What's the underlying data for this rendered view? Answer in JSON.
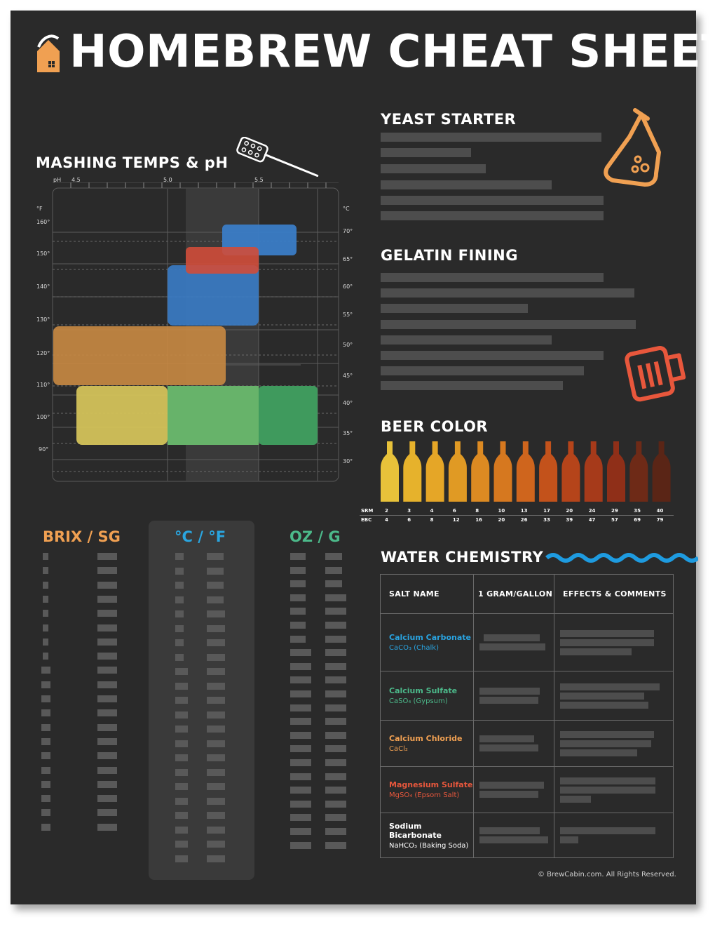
{
  "header": {
    "title": "HOMEBREW CHEAT SHEET",
    "logo_icon": "house-icon"
  },
  "mashing": {
    "title": "MASHING TEMPS & pH",
    "ph_label": "pH",
    "ph_ticks": [
      "4.5",
      "5.0",
      "5.5"
    ],
    "f_label": "°F",
    "c_label": "°C",
    "f_ticks": [
      "160°",
      "150°",
      "140°",
      "130°",
      "120°",
      "110°",
      "100°",
      "90°"
    ],
    "c_ticks": [
      "70°",
      "65°",
      "60°",
      "55°",
      "50°",
      "45°",
      "40°",
      "35°",
      "30°"
    ],
    "colors": {
      "blue": "#3a7cc6",
      "red": "#d04c3a",
      "orange": "#c98a43",
      "yellow": "#d3c25a",
      "green": "#67b36a",
      "darkgreen": "#3f9a5d"
    }
  },
  "yeast_starter": {
    "title": "YEAST STARTER"
  },
  "gelatin_fining": {
    "title": "GELATIN FINING"
  },
  "beer_color": {
    "title": "BEER COLOR",
    "srm_label": "SRM",
    "ebc_label": "EBC",
    "srm": [
      "2",
      "3",
      "4",
      "6",
      "8",
      "10",
      "13",
      "17",
      "20",
      "24",
      "29",
      "35",
      "40"
    ],
    "ebc": [
      "4",
      "6",
      "8",
      "12",
      "16",
      "20",
      "26",
      "33",
      "39",
      "47",
      "57",
      "69",
      "79"
    ],
    "bottle_colors": [
      "#e8c23a",
      "#e6b22c",
      "#e5a627",
      "#e09a24",
      "#dc8a22",
      "#d6781f",
      "#cf651d",
      "#c3521b",
      "#b5441a",
      "#a63a1a",
      "#8f2f18",
      "#6e2a17",
      "#5a2516"
    ]
  },
  "conversions": {
    "brix_sg": "BRIX / SG",
    "c_f": "°C / °F",
    "oz_g": "OZ / G",
    "colors": {
      "brix": "#f0a052",
      "cf": "#2aa5df",
      "ozg": "#4cb98a"
    }
  },
  "water": {
    "title": "WATER CHEMISTRY",
    "headers": [
      "SALT NAME",
      "1 GRAM/GALLON",
      "EFFECTS & COMMENTS"
    ],
    "salts": [
      {
        "name": "Calcium Carbonate",
        "formula": "CaCO₃ (Chalk)",
        "color": "#29a3e0"
      },
      {
        "name": "Calcium Sulfate",
        "formula": "CaSO₄ (Gypsum)",
        "color": "#4cb98a"
      },
      {
        "name": "Calcium Chloride",
        "formula": "CaCl₂",
        "color": "#f0a052"
      },
      {
        "name": "Magnesium Sulfate",
        "formula": "MgSO₄ (Epsom Salt)",
        "color": "#e8573c"
      },
      {
        "name": "Sodium Bicarbonate",
        "formula": "NaHCO₃ (Baking Soda)",
        "color": "#ffffff"
      }
    ]
  },
  "footer": {
    "copyright": "© BrewCabin.com. All Rights Reserved."
  }
}
